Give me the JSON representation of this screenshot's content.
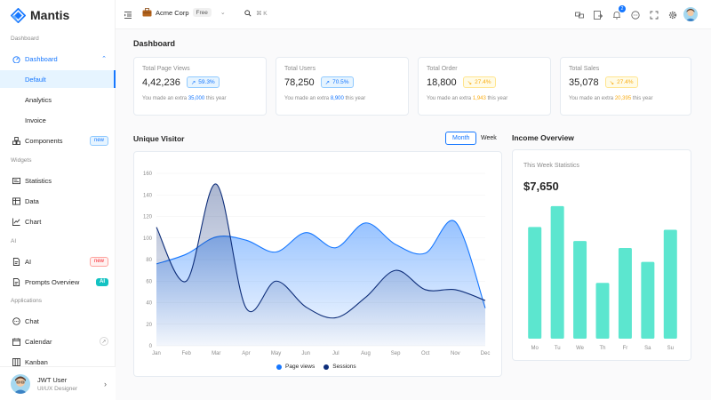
{
  "app": {
    "name": "Mantis"
  },
  "sidebar": {
    "sections": [
      "Dashboard",
      "Widgets",
      "AI",
      "Applications"
    ],
    "dashboard": {
      "label": "Dashboard",
      "children": [
        "Default",
        "Analytics",
        "Invoice"
      ]
    },
    "components": {
      "label": "Components",
      "badge": "new"
    },
    "widgets": [
      "Statistics",
      "Data",
      "Chart"
    ],
    "ai": {
      "label": "AI",
      "badge": "new"
    },
    "prompts": {
      "label": "Prompts Overview",
      "badge": "AI"
    },
    "apps": [
      "Chat",
      "Calendar",
      "Kanban"
    ],
    "user": {
      "name": "JWT User",
      "role": "UI/UX Designer"
    }
  },
  "header": {
    "workspace": "Acme Corp",
    "plan": "Free",
    "search_shortcut": "⌘ K",
    "notif_count": "2"
  },
  "page": {
    "title": "Dashboard"
  },
  "stats": [
    {
      "title": "Total Page Views",
      "value": "4,42,236",
      "pct": "59.3%",
      "trend": "up",
      "pre": "You made an extra ",
      "extra": "35,000",
      "post": " this year"
    },
    {
      "title": "Total Users",
      "value": "78,250",
      "pct": "70.5%",
      "trend": "up",
      "pre": "You made an extra ",
      "extra": "8,900",
      "post": " this year"
    },
    {
      "title": "Total Order",
      "value": "18,800",
      "pct": "27.4%",
      "trend": "down",
      "pre": "You made an extra ",
      "extra": "1,943",
      "post": " this year"
    },
    {
      "title": "Total Sales",
      "value": "35,078",
      "pct": "27.4%",
      "trend": "down",
      "pre": "You made an extra ",
      "extra": "20,395",
      "post": " this year"
    }
  ],
  "visitor": {
    "title": "Unique Visitor",
    "toggle": [
      "Month",
      "Week"
    ],
    "legend": [
      "Page views",
      "Sessions"
    ]
  },
  "income": {
    "title": "Income Overview",
    "subtitle": "This Week Statistics",
    "value": "$7,650"
  },
  "chart_data": [
    {
      "type": "area",
      "x": [
        "Jan",
        "Feb",
        "Mar",
        "Apr",
        "May",
        "Jun",
        "Jul",
        "Aug",
        "Sep",
        "Oct",
        "Nov",
        "Dec"
      ],
      "yticks": [
        0,
        20,
        40,
        60,
        80,
        100,
        120,
        140,
        160
      ],
      "ylim": [
        0,
        160
      ],
      "series": [
        {
          "name": "Page views",
          "values": [
            76,
            85,
            101,
            98,
            87,
            105,
            91,
            114,
            94,
            86,
            115,
            35
          ],
          "color": "#1677ff"
        },
        {
          "name": "Sessions",
          "values": [
            110,
            60,
            150,
            35,
            60,
            36,
            26,
            45,
            70,
            52,
            52,
            42
          ],
          "color": "#0e2e7a"
        }
      ]
    },
    {
      "type": "bar",
      "categories": [
        "Mo",
        "Tu",
        "We",
        "Th",
        "Fr",
        "Sa",
        "Su"
      ],
      "values": [
        80,
        95,
        70,
        40,
        65,
        55,
        78
      ],
      "ylim": [
        0,
        100
      ],
      "color": "#5ce6cf"
    }
  ]
}
